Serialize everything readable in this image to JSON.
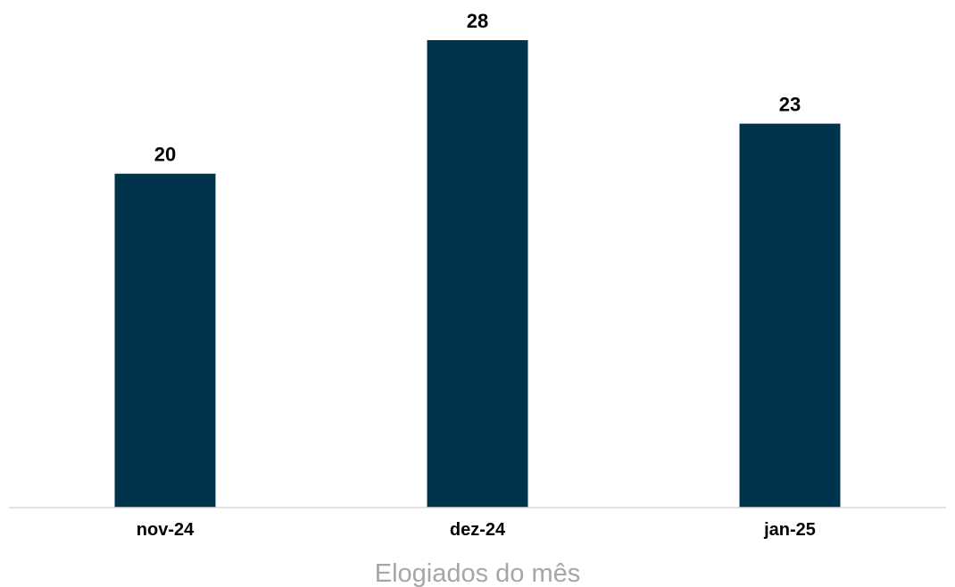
{
  "chart_data": {
    "type": "bar",
    "categories": [
      "nov-24",
      "dez-24",
      "jan-25"
    ],
    "values": [
      20,
      28,
      23
    ],
    "title": "",
    "xlabel": "Elogiados do mês",
    "ylabel": "",
    "ylim": [
      0,
      28
    ],
    "grid": false,
    "legend": "none",
    "data_labels": true,
    "colors": {
      "bar": "#00344d",
      "axis": "#d9d9d9",
      "xlabel": "#a6a6a6",
      "text": "#000000"
    }
  }
}
